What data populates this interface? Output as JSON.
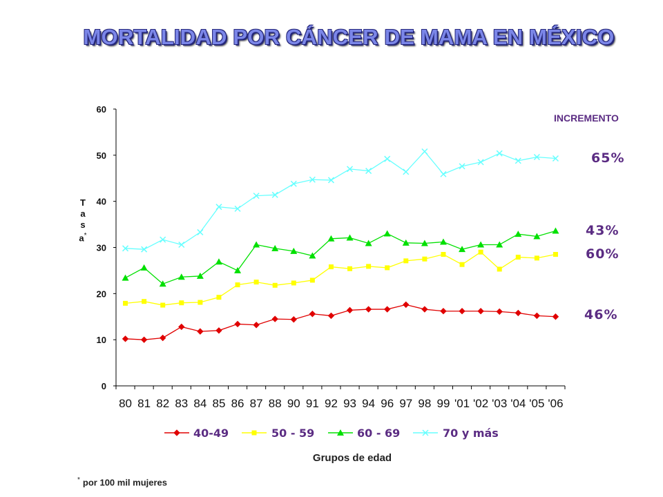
{
  "title": "MORTALIDAD POR CÁNCER DE MAMA EN MÉXICO",
  "increment_header": "INCREMENTO",
  "increments": [
    {
      "label": "65%"
    },
    {
      "label": "43%"
    },
    {
      "label": "60%"
    },
    {
      "label": "46%"
    }
  ],
  "ylabel_letters": [
    "T",
    "a",
    "s",
    "a"
  ],
  "ylabel_marker": "*",
  "xlabel": "Grupos de edad",
  "footnote": {
    "marker": "*",
    "text": "por 100 mil mujeres"
  },
  "colors": {
    "red": "#e00000",
    "yellow": "#ffff00",
    "green": "#00e000",
    "cyan": "#66ffff",
    "accent": "#5b2c83"
  },
  "chart_data": {
    "type": "line",
    "x": [
      "80",
      "81",
      "82",
      "83",
      "84",
      "85",
      "86",
      "87",
      "88",
      "90",
      "91",
      "92",
      "93",
      "94",
      "96",
      "97",
      "98",
      "99",
      "'01",
      "'02",
      "'03",
      "'04",
      "'05",
      "'06"
    ],
    "ylim": [
      0,
      60
    ],
    "yticks": [
      0,
      10,
      20,
      30,
      40,
      50,
      60
    ],
    "grid": false,
    "legend": "bottom",
    "series": [
      {
        "name": "40-49",
        "marker": "diamond",
        "color": "#e00000",
        "values": [
          10.2,
          10.0,
          10.4,
          12.8,
          11.8,
          12.0,
          13.4,
          13.2,
          14.5,
          14.4,
          15.6,
          15.2,
          16.4,
          16.6,
          16.6,
          17.6,
          16.6,
          16.2,
          16.2,
          16.2,
          16.1,
          15.8,
          15.2,
          15.0
        ]
      },
      {
        "name": "50 - 59",
        "marker": "square",
        "color": "#ffff00",
        "values": [
          17.9,
          18.3,
          17.5,
          18.0,
          18.1,
          19.2,
          21.9,
          22.5,
          21.8,
          22.3,
          22.9,
          25.8,
          25.4,
          25.9,
          25.6,
          27.1,
          27.5,
          28.5,
          26.3,
          29.0,
          25.3,
          27.9,
          27.7,
          28.5
        ]
      },
      {
        "name": "60 - 69",
        "marker": "triangle",
        "color": "#00e000",
        "values": [
          23.4,
          25.6,
          22.1,
          23.6,
          23.8,
          26.9,
          25.0,
          30.6,
          29.8,
          29.2,
          28.2,
          31.9,
          32.1,
          30.9,
          33.0,
          31.0,
          30.9,
          31.2,
          29.6,
          30.6,
          30.6,
          32.9,
          32.4,
          33.6
        ]
      },
      {
        "name": "70 y más",
        "marker": "x",
        "color": "#66ffff",
        "values": [
          29.8,
          29.6,
          31.7,
          30.6,
          33.3,
          38.8,
          38.4,
          41.2,
          41.4,
          43.8,
          44.7,
          44.6,
          47.0,
          46.6,
          49.2,
          46.4,
          50.8,
          45.9,
          47.6,
          48.5,
          50.4,
          48.8,
          49.6,
          49.3
        ]
      }
    ]
  }
}
